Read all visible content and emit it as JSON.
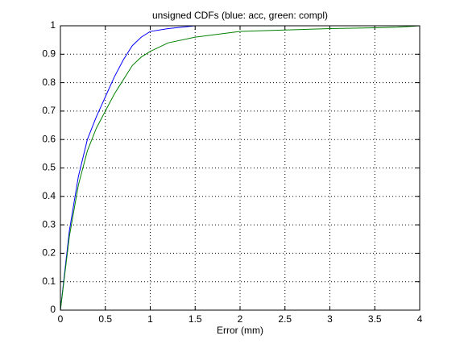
{
  "chart_data": {
    "type": "line",
    "title": "unsigned CDFs (blue: acc, green: compl)",
    "x_label": "Error (mm)",
    "x": [
      0,
      0.1,
      0.2,
      0.3,
      0.4,
      0.5,
      0.6,
      0.7,
      0.8,
      0.9,
      1.0,
      1.2,
      1.5,
      2,
      2.5,
      3,
      3.5,
      3.75,
      4
    ],
    "series": [
      {
        "color": "#0000ff",
        "values": [
          0,
          0.28,
          0.47,
          0.6,
          0.68,
          0.75,
          0.82,
          0.88,
          0.93,
          0.96,
          0.98,
          0.99,
          1,
          1,
          1,
          1,
          1,
          1,
          1
        ]
      },
      {
        "color": "#008000",
        "values": [
          0,
          0.26,
          0.44,
          0.56,
          0.64,
          0.7,
          0.76,
          0.81,
          0.86,
          0.89,
          0.91,
          0.94,
          0.96,
          0.98,
          0.985,
          0.99,
          0.993,
          0.995,
          1
        ]
      }
    ],
    "xlim": [
      0,
      4
    ],
    "xticks": [
      0,
      0.5,
      1,
      1.5,
      2,
      2.5,
      3,
      3.5,
      4
    ],
    "ylim": [
      0,
      1
    ],
    "yticks": [
      0,
      0.1,
      0.2,
      0.3,
      0.4,
      0.5,
      0.6,
      0.7,
      0.8,
      0.9,
      1
    ],
    "grid": true
  }
}
